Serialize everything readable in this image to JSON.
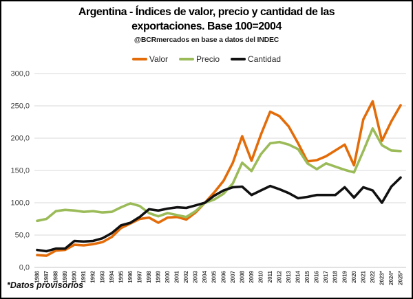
{
  "title": {
    "line1": "Argentina - Índices de valor, precio y cantidad de las",
    "line2": "exportaciones. Base 100=2004"
  },
  "subtitle": "@BCRmercados en base a datos del INDEC",
  "legend": {
    "items": [
      {
        "label": "Valor",
        "color": "#E36C09"
      },
      {
        "label": "Precio",
        "color": "#9BBB59"
      },
      {
        "label": "Cantidad",
        "color": "#111111"
      }
    ]
  },
  "footnote": "*Datos provisorios",
  "colors": {
    "gridline": "#d9d9d9",
    "baseline": "#c6c6c6",
    "tick_text": "#404040"
  },
  "chart_data": {
    "type": "line",
    "title": "Argentina - Índices de valor, precio y cantidad de las exportaciones. Base 100=2004",
    "subtitle": "@BCRmercados en base a datos del INDEC",
    "xlabel": "",
    "ylabel": "",
    "ylim": [
      0,
      300
    ],
    "ytick_interval": 50,
    "ytick_labels": [
      "0,0",
      "50,0",
      "100,0",
      "150,0",
      "200,0",
      "250,0",
      "300,0"
    ],
    "grid": "horizontal",
    "legend_position": "top",
    "footnote": "*Datos provisorios",
    "x_categories": [
      "1986",
      "1987",
      "1988",
      "1989",
      "1990",
      "1991",
      "1992",
      "1993",
      "1994",
      "1995",
      "1996",
      "1997",
      "1998",
      "1999",
      "2000",
      "2001",
      "2002",
      "2003",
      "2004",
      "2005",
      "2006",
      "2007",
      "2008",
      "2009",
      "2010",
      "2011",
      "2012",
      "2013",
      "2014",
      "2015",
      "2016",
      "2017",
      "2018",
      "2019",
      "2020",
      "2021",
      "2022",
      "2023*",
      "2024*",
      "2025*"
    ],
    "series": [
      {
        "name": "Valor",
        "color": "#E36C09",
        "values": [
          19,
          18,
          26,
          27,
          35,
          34,
          36,
          39,
          47,
          61,
          68,
          75,
          77,
          69,
          77,
          78,
          74,
          85,
          100,
          116,
          134,
          162,
          203,
          165,
          205,
          241,
          234,
          218,
          192,
          164,
          166,
          172,
          181,
          190,
          158,
          229,
          257,
          196,
          226,
          251
        ]
      },
      {
        "name": "Precio",
        "color": "#9BBB59",
        "values": [
          72,
          75,
          87,
          89,
          88,
          86,
          87,
          85,
          86,
          93,
          99,
          95,
          84,
          79,
          84,
          81,
          78,
          87,
          100,
          105,
          114,
          130,
          162,
          149,
          175,
          192,
          194,
          190,
          183,
          161,
          152,
          161,
          156,
          151,
          147,
          180,
          215,
          189,
          181,
          180
        ]
      },
      {
        "name": "Cantidad",
        "color": "#111111",
        "values": [
          27,
          25,
          29,
          29,
          41,
          40,
          41,
          45,
          53,
          65,
          69,
          78,
          90,
          88,
          91,
          93,
          92,
          96,
          100,
          111,
          119,
          124,
          125,
          112,
          119,
          126,
          121,
          115,
          107,
          109,
          112,
          112,
          112,
          124,
          108,
          124,
          119,
          100,
          125,
          139
        ]
      }
    ]
  }
}
